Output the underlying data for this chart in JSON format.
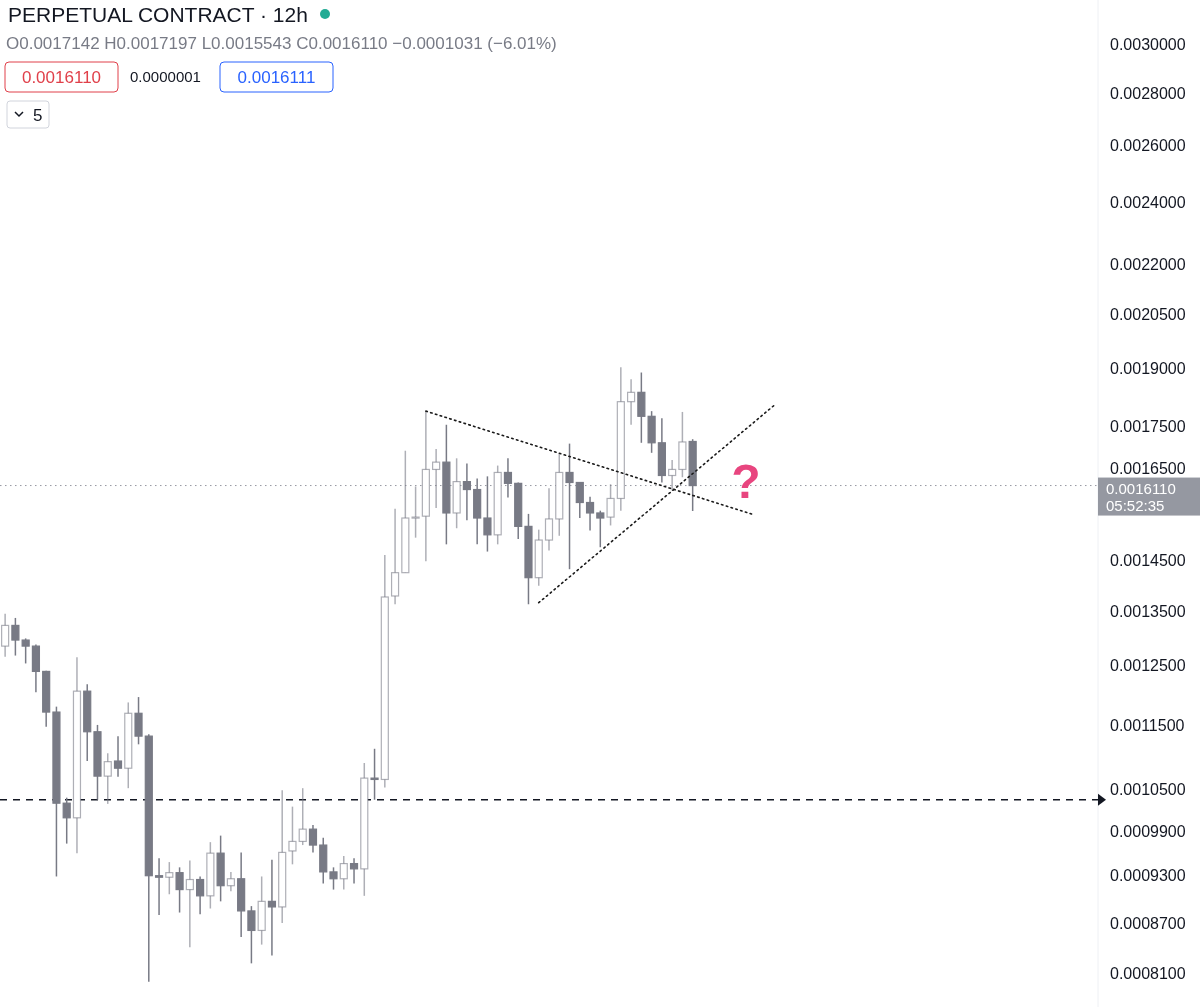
{
  "chart_data": {
    "type": "candlestick",
    "title": "PERPETUAL CONTRACT · 12h",
    "subtitle": "O0.0017142 H0.0017197 L0.0015543 C0.0016110 −0.0001031 (−6.01%)",
    "annotations": [
      "0.0016110",
      "0.0000001",
      "0.0016111",
      "5",
      "05:52:35",
      "?"
    ],
    "categories": [
      null,
      null,
      null,
      null,
      null,
      null,
      null,
      null,
      null,
      null,
      null,
      null,
      null,
      null,
      null,
      null,
      null,
      null,
      null,
      null,
      null,
      null,
      null,
      null,
      null,
      null,
      null,
      null,
      null,
      null,
      null,
      null,
      null,
      null,
      null,
      null,
      null,
      null,
      null,
      null,
      null,
      null,
      null,
      null,
      null,
      null,
      null,
      null,
      null,
      null,
      null,
      null,
      null,
      null,
      null,
      null,
      null,
      null,
      null,
      null,
      null,
      null,
      null,
      null,
      null,
      null,
      null,
      null,
      null,
      null,
      null,
      null,
      null,
      null,
      null,
      null,
      null,
      null,
      null,
      null,
      null,
      null,
      null,
      null,
      null,
      null,
      null,
      null,
      null,
      null,
      null,
      null,
      null,
      null,
      null,
      null,
      null,
      null,
      null,
      null,
      null,
      null,
      null,
      null,
      null,
      null,
      null
    ],
    "color": "#787a85",
    "ohlc": [
      [
        0.001285,
        0.001345,
        0.001266,
        0.001323
      ],
      [
        0.001323,
        0.001337,
        0.001268,
        0.001296
      ],
      [
        0.001296,
        0.001299,
        0.001254,
        0.001285
      ],
      [
        0.001285,
        0.001288,
        0.001204,
        0.00124
      ],
      [
        0.00124,
        0.001241,
        0.001147,
        0.001171
      ],
      [
        0.001171,
        0.00118,
        0.000929,
        0.00103
      ],
      [
        0.00103,
        0.001038,
        0.000973,
        0.001009
      ],
      [
        0.001009,
        0.001265,
        0.00096,
        0.001206
      ],
      [
        0.001206,
        0.001218,
        0.001093,
        0.001139
      ],
      [
        0.001139,
        0.00115,
        0.001035,
        0.00107
      ],
      [
        0.00107,
        0.001105,
        0.001029,
        0.001092
      ],
      [
        0.001093,
        0.001132,
        0.001069,
        0.001082
      ],
      [
        0.001082,
        0.001187,
        0.001052,
        0.001169
      ],
      [
        0.001169,
        0.001196,
        0.001119,
        0.001132
      ],
      [
        0.001132,
        0.001135,
        0.000801,
        0.00093
      ],
      [
        0.00093,
        0.000953,
        0.00088,
        0.000928
      ],
      [
        0.000928,
        0.000948,
        0.000906,
        0.000934
      ],
      [
        0.000934,
        0.000941,
        0.000883,
        0.000912
      ],
      [
        0.000912,
        0.00095,
        0.000841,
        0.000925
      ],
      [
        0.000925,
        0.000929,
        0.000881,
        0.000904
      ],
      [
        0.000904,
        0.000975,
        0.000888,
        0.00096
      ],
      [
        0.00096,
        0.000984,
        0.000897,
        0.000917
      ],
      [
        0.000917,
        0.000935,
        0.00091,
        0.000926
      ],
      [
        0.000926,
        0.000961,
        0.000853,
        0.000885
      ],
      [
        0.000885,
        0.000891,
        0.000822,
        0.000861
      ],
      [
        0.000861,
        0.000929,
        0.000844,
        0.000897
      ],
      [
        0.000897,
        0.000951,
        0.000831,
        0.00089
      ],
      [
        0.00089,
        0.001049,
        0.00087,
        0.000961
      ],
      [
        0.000963,
        0.001025,
        0.000945,
        0.000976
      ],
      [
        0.000976,
        0.001052,
        0.000971,
        0.000993
      ],
      [
        0.000993,
        0.000999,
        0.000961,
        0.000971
      ],
      [
        0.000971,
        0.000981,
        0.00092,
        0.000935
      ],
      [
        0.000935,
        0.000941,
        0.000912,
        0.000926
      ],
      [
        0.000926,
        0.000956,
        0.000912,
        0.000946
      ],
      [
        0.000946,
        0.000953,
        0.00092,
        0.000939
      ],
      [
        0.000939,
        0.00109,
        0.000904,
        0.001067
      ],
      [
        0.001067,
        0.001112,
        0.001035,
        0.001065
      ],
      [
        0.001065,
        0.001461,
        0.001053,
        0.001377
      ],
      [
        0.001379,
        0.001559,
        0.001363,
        0.001425
      ],
      [
        0.001425,
        0.001692,
        0.001425,
        0.001539
      ],
      [
        0.001539,
        0.001609,
        0.001497,
        0.001541
      ],
      [
        0.001543,
        0.001787,
        0.001448,
        0.001648
      ],
      [
        0.001648,
        0.001696,
        0.001561,
        0.001665
      ],
      [
        0.001665,
        0.001755,
        0.001483,
        0.00155
      ],
      [
        0.00155,
        0.001674,
        0.001517,
        0.00162
      ],
      [
        0.00162,
        0.001662,
        0.001534,
        0.001602
      ],
      [
        0.001602,
        0.001627,
        0.001483,
        0.001539
      ],
      [
        0.001539,
        0.001632,
        0.001468,
        0.001503
      ],
      [
        0.001503,
        0.001657,
        0.001483,
        0.001641
      ],
      [
        0.001641,
        0.001674,
        0.001584,
        0.001616
      ],
      [
        0.001616,
        0.001618,
        0.001494,
        0.001521
      ],
      [
        0.001521,
        0.001548,
        0.001363,
        0.001415
      ],
      [
        0.001415,
        0.001514,
        0.001399,
        0.001492
      ],
      [
        0.001492,
        0.001605,
        0.00147,
        0.001537
      ],
      [
        0.001537,
        0.001684,
        0.001501,
        0.001641
      ],
      [
        0.001641,
        0.001709,
        0.001432,
        0.001618
      ],
      [
        0.001618,
        0.001618,
        0.001539,
        0.001573
      ],
      [
        0.001573,
        0.001586,
        0.001512,
        0.00155
      ],
      [
        0.00155,
        0.001555,
        0.001477,
        0.001539
      ],
      [
        0.001541,
        0.001614,
        0.001523,
        0.001582
      ],
      [
        0.001582,
        0.001903,
        0.001555,
        0.001813
      ],
      [
        0.001813,
        0.001871,
        0.001755,
        0.001837
      ],
      [
        0.001837,
        0.001889,
        0.001711,
        0.001776
      ],
      [
        0.001776,
        0.001789,
        0.001687,
        0.001711
      ],
      [
        0.001711,
        0.001771,
        0.001618,
        0.001634
      ],
      [
        0.001634,
        0.00167,
        0.0016,
        0.001648
      ],
      [
        0.001648,
        0.001787,
        0.00163,
        0.001713
      ],
      [
        0.0017142,
        0.0017197,
        0.0015543,
        0.001611
      ],
      null,
      null,
      null,
      null,
      null,
      null,
      null,
      null,
      null,
      null,
      null,
      null,
      null,
      null,
      null,
      null,
      null,
      null,
      null,
      null,
      null,
      null,
      null,
      null,
      null,
      null,
      null,
      null,
      null,
      null,
      null,
      null,
      null,
      null,
      null,
      null,
      null,
      null,
      null
    ],
    "series": [
      {
        "type": "line",
        "color": "#1a1a1a",
        "line_style": "dotted",
        "values": [
          null,
          null,
          null,
          null,
          null,
          null,
          null,
          null,
          null,
          null,
          null,
          null,
          null,
          null,
          null,
          null,
          null,
          null,
          null,
          null,
          null,
          null,
          null,
          null,
          null,
          null,
          null,
          null,
          null,
          null,
          null,
          null,
          null,
          null,
          null,
          null,
          null,
          null,
          null,
          null,
          null,
          0.001789,
          null,
          null,
          null,
          null,
          null,
          null,
          null,
          null,
          null,
          null,
          null,
          null,
          null,
          null,
          null,
          null,
          null,
          null,
          null,
          null,
          null,
          null,
          null,
          null,
          null,
          null,
          null,
          null,
          null,
          null,
          null,
          0.001546,
          null,
          null,
          null,
          null,
          null,
          null,
          null,
          null,
          null,
          null,
          null,
          null,
          null,
          null,
          null,
          null,
          null,
          null,
          null,
          null,
          null,
          null,
          null,
          null,
          null,
          null,
          null,
          null,
          null,
          null,
          null,
          null,
          null
        ]
      },
      {
        "type": "line",
        "color": "#1a1a1a",
        "line_style": "dotted",
        "values": [
          null,
          null,
          null,
          null,
          null,
          null,
          null,
          null,
          null,
          null,
          null,
          null,
          null,
          null,
          null,
          null,
          null,
          null,
          null,
          null,
          null,
          null,
          null,
          null,
          null,
          null,
          null,
          null,
          null,
          null,
          null,
          null,
          null,
          null,
          null,
          null,
          null,
          null,
          null,
          null,
          null,
          null,
          null,
          null,
          null,
          null,
          null,
          null,
          null,
          null,
          null,
          null,
          0.001366,
          null,
          null,
          null,
          null,
          null,
          null,
          null,
          null,
          null,
          null,
          null,
          null,
          null,
          null,
          null,
          null,
          null,
          null,
          null,
          null,
          null,
          null,
          0.001805,
          null,
          null,
          null,
          null,
          null,
          null,
          null,
          null,
          null,
          null,
          null,
          null,
          null,
          null,
          null,
          null,
          null,
          null,
          null,
          null,
          null,
          null,
          null,
          null,
          null,
          null,
          null,
          null,
          null,
          null,
          null
        ]
      }
    ],
    "ref_lines": [
      {
        "axis": "y",
        "value": 0.001611,
        "label": "0.0016110",
        "line_style": "dotted",
        "color": "#9598a1"
      },
      {
        "axis": "y",
        "value": 0.001035,
        "line_style": "dashed",
        "color": "#131722"
      }
    ],
    "log": "y",
    "ylim": [
      0.000773,
      0.003192
    ],
    "yticks": [
      {
        "value": 0.003,
        "label": "0.0030000"
      },
      {
        "value": 0.0028,
        "label": "0.0028000"
      },
      {
        "value": 0.0026,
        "label": "0.0026000"
      },
      {
        "value": 0.0024,
        "label": "0.0024000"
      },
      {
        "value": 0.0022,
        "label": "0.0022000"
      },
      {
        "value": 0.00205,
        "label": "0.0020500"
      },
      {
        "value": 0.0019,
        "label": "0.0019000"
      },
      {
        "value": 0.00175,
        "label": "0.0017500"
      },
      {
        "value": 0.00165,
        "label": "0.0016500"
      },
      {
        "value": 0.00145,
        "label": "0.0014500"
      },
      {
        "value": 0.00135,
        "label": "0.0013500"
      },
      {
        "value": 0.00125,
        "label": "0.0012500"
      },
      {
        "value": 0.00115,
        "label": "0.0011500"
      },
      {
        "value": 0.00105,
        "label": "0.0010500"
      },
      {
        "value": 0.00099,
        "label": "0.0009900"
      },
      {
        "value": 0.00093,
        "label": "0.0009300"
      },
      {
        "value": 0.00087,
        "label": "0.0008700"
      },
      {
        "value": 0.00081,
        "label": "0.0008100"
      }
    ],
    "tick_labels": "y",
    "grid": false,
    "marker": "none"
  }
}
